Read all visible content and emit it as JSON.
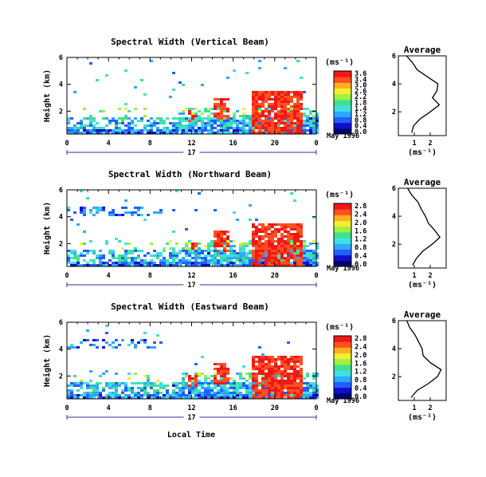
{
  "figure": {
    "x_axis_label": "Local Time",
    "day_label": "17",
    "date_label": "May 1996",
    "cb_unit": "(ms⁻¹)",
    "avg_title": "Average",
    "avg_unit": "(ms⁻¹)"
  },
  "chart_data": [
    {
      "type": "heatmap",
      "title": "Spectral Width (Vertical Beam)",
      "ylabel": "Height (km)",
      "xlabel": "",
      "x_ticks": [
        "0",
        "4",
        "8",
        "12",
        "16",
        "20",
        "0"
      ],
      "xlim": [
        0,
        24
      ],
      "y_ticks": [
        "6",
        "4",
        "2"
      ],
      "ylim": [
        0.3,
        6
      ],
      "colorbar": {
        "label": "(ms⁻¹)",
        "ticks": [
          "3.6",
          "3.4",
          "3.0",
          "2.6",
          "2.2",
          "1.8",
          "1.4",
          "1.2",
          "0.8",
          "0.4",
          "0.0"
        ],
        "range": [
          0,
          3.6
        ]
      }
    },
    {
      "type": "line",
      "title": "Average",
      "xlabel": "(ms⁻¹)",
      "x_ticks": [
        "1",
        "2"
      ],
      "y_ticks": [
        "6",
        "4",
        "2"
      ],
      "ylim": [
        0.3,
        6
      ],
      "series": [
        {
          "y": [
            0.5,
            1.0,
            1.5,
            2.0,
            2.5,
            3.0,
            3.5,
            4.0,
            4.5,
            5.0,
            5.5,
            6.0
          ],
          "x": [
            0.8,
            1.0,
            1.4,
            2.0,
            2.6,
            2.1,
            2.4,
            2.5,
            1.8,
            1.2,
            0.9,
            0.5
          ]
        }
      ]
    },
    {
      "type": "heatmap",
      "title": "Spectral Width (Northward Beam)",
      "ylabel": "Height (km)",
      "xlabel": "",
      "x_ticks": [
        "0",
        "4",
        "8",
        "12",
        "16",
        "20",
        "0"
      ],
      "xlim": [
        0,
        24
      ],
      "y_ticks": [
        "6",
        "4",
        "2"
      ],
      "ylim": [
        0.3,
        6
      ],
      "colorbar": {
        "label": "(ms⁻¹)",
        "ticks": [
          "2.8",
          "2.4",
          "2.0",
          "1.6",
          "1.2",
          "0.8",
          "0.4",
          "0.0"
        ],
        "range": [
          0,
          2.8
        ]
      }
    },
    {
      "type": "line",
      "title": "Average",
      "xlabel": "(ms⁻¹)",
      "x_ticks": [
        "1",
        "2"
      ],
      "y_ticks": [
        "6",
        "4",
        "2"
      ],
      "ylim": [
        0.3,
        6
      ],
      "series": [
        {
          "y": [
            0.5,
            1.0,
            1.5,
            2.0,
            2.5,
            3.0,
            3.5,
            4.0,
            4.5,
            5.0,
            5.5,
            6.0
          ],
          "x": [
            0.9,
            1.1,
            1.5,
            2.1,
            2.6,
            2.3,
            1.9,
            1.7,
            1.4,
            1.2,
            0.9,
            0.6
          ]
        }
      ]
    },
    {
      "type": "heatmap",
      "title": "Spectral Width (Eastward Beam)",
      "ylabel": "Height (km)",
      "xlabel": "",
      "x_ticks": [
        "0",
        "4",
        "8",
        "12",
        "16",
        "20",
        "0"
      ],
      "xlim": [
        0,
        24
      ],
      "y_ticks": [
        "6",
        "4",
        "2"
      ],
      "ylim": [
        0.3,
        6
      ],
      "colorbar": {
        "label": "(ms⁻¹)",
        "ticks": [
          "2.8",
          "2.4",
          "2.0",
          "1.6",
          "1.2",
          "0.8",
          "0.4",
          "0.0"
        ],
        "range": [
          0,
          2.8
        ]
      }
    },
    {
      "type": "line",
      "title": "Average",
      "xlabel": "(ms⁻¹)",
      "x_ticks": [
        "1",
        "2"
      ],
      "y_ticks": [
        "6",
        "4",
        "2"
      ],
      "ylim": [
        0.3,
        6
      ],
      "series": [
        {
          "y": [
            0.5,
            1.0,
            1.5,
            2.0,
            2.5,
            3.0,
            3.5,
            4.0,
            4.5,
            5.0,
            5.5,
            6.0
          ],
          "x": [
            0.8,
            1.2,
            1.9,
            2.5,
            2.7,
            2.0,
            1.6,
            1.5,
            1.3,
            1.0,
            0.7,
            0.5
          ]
        }
      ]
    }
  ]
}
